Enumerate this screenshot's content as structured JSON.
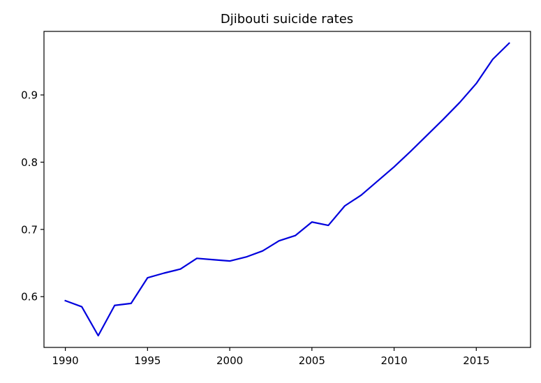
{
  "chart_data": {
    "type": "line",
    "title": "Djibouti suicide rates",
    "xlabel": "",
    "ylabel": "",
    "xlim": [
      1988.7,
      2018.3
    ],
    "ylim": [
      0.5245,
      0.9945
    ],
    "x_ticks": [
      1990,
      1995,
      2000,
      2005,
      2010,
      2015
    ],
    "x_tick_labels": [
      "1990",
      "1995",
      "2000",
      "2005",
      "2010",
      "2015"
    ],
    "y_ticks": [
      0.6,
      0.7,
      0.8,
      0.9
    ],
    "y_tick_labels": [
      "0.6",
      "0.7",
      "0.8",
      "0.9"
    ],
    "grid": false,
    "legend": "none",
    "series": [
      {
        "color": "#0000dd",
        "x": [
          1990,
          1991,
          1992,
          1993,
          1994,
          1995,
          1996,
          1997,
          1998,
          1999,
          2000,
          2001,
          2002,
          2003,
          2004,
          2005,
          2006,
          2007,
          2008,
          2009,
          2010,
          2011,
          2012,
          2013,
          2014,
          2015,
          2016,
          2017
        ],
        "values": [
          0.594,
          0.585,
          0.542,
          0.587,
          0.59,
          0.628,
          0.635,
          0.641,
          0.657,
          0.655,
          0.653,
          0.659,
          0.668,
          0.683,
          0.691,
          0.711,
          0.706,
          0.735,
          0.751,
          0.772,
          0.793,
          0.816,
          0.84,
          0.864,
          0.889,
          0.917,
          0.953,
          0.977
        ]
      }
    ]
  }
}
